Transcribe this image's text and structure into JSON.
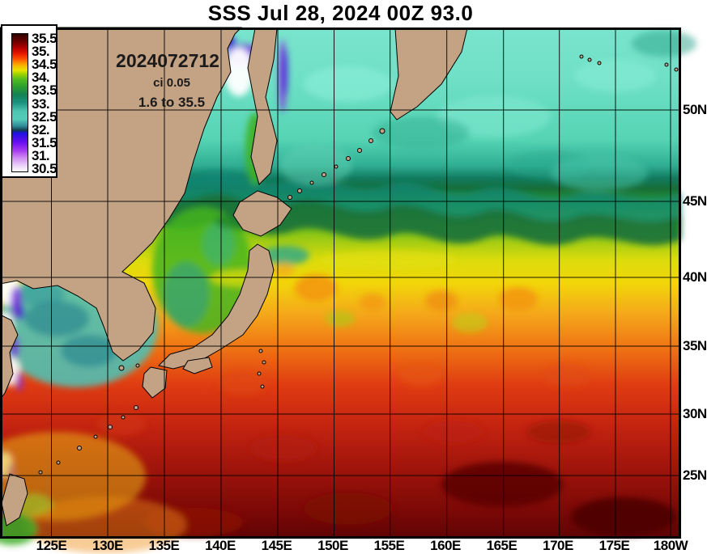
{
  "title": "SSS Jul 28, 2024 00Z 93.0",
  "map_annotations": {
    "run_id": "2024072712",
    "contour_interval": "ci 0.05",
    "data_range": "1.6 to 35.5"
  },
  "colorbar": {
    "tick_labels": [
      "35.5",
      "35.",
      "34.5",
      "34.",
      "33.5",
      "33.",
      "32.5",
      "32.",
      "31.5",
      "31.",
      "30.5"
    ],
    "min_value": "30.5",
    "max_value": "35.5",
    "gradient_top_to_bottom": [
      "#2e0000",
      "#b00000",
      "#fb4d00",
      "#fc8e00",
      "#e6e300",
      "#52bc1f",
      "#158254",
      "#1b9180",
      "#4cc4b0",
      "#123c4e",
      "#1c12e0",
      "#6a0ef0",
      "#a83cf0",
      "#cf8af2",
      "#ffffff"
    ]
  },
  "axes": {
    "lat_tick_labels": [
      "50N",
      "45N",
      "40N",
      "35N",
      "30N",
      "25N"
    ],
    "lon_tick_labels": [
      "125E",
      "130E",
      "135E",
      "140E",
      "145E",
      "150E",
      "155E",
      "160E",
      "165E",
      "170E",
      "175E",
      "180W"
    ]
  },
  "palette": {
    "land": "#c4a384",
    "grid_lines": "#000000",
    "page_background": "#ffffff",
    "north_ocean": "#7ae4cd",
    "south_ocean": "#5e0404"
  }
}
